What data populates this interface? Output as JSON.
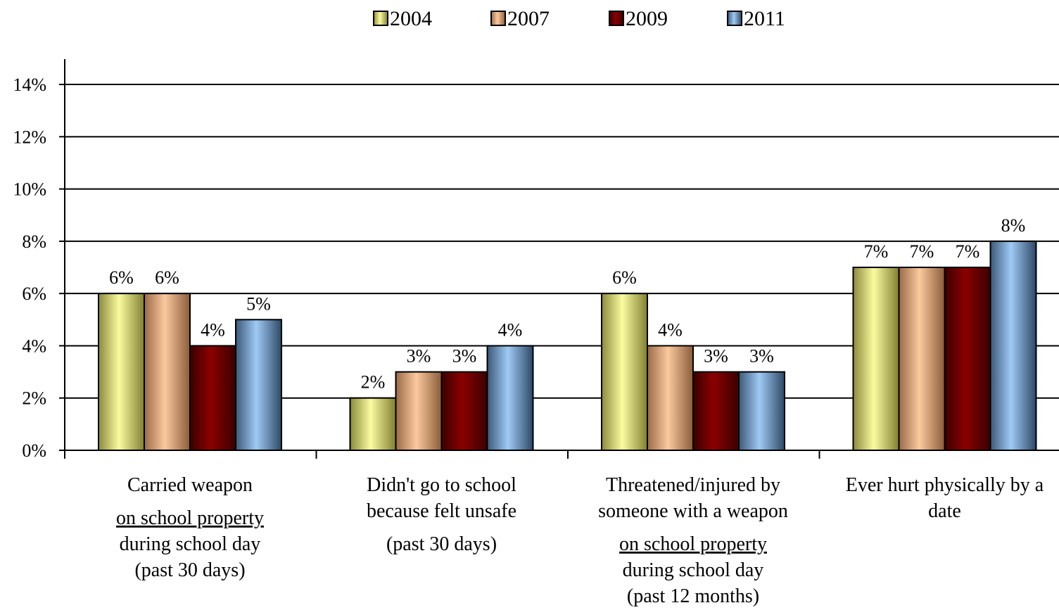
{
  "chart_data": {
    "type": "bar",
    "categories": [
      [
        "Carried weapon",
        "",
        "on school property",
        "during school day",
        "(past 30 days)"
      ],
      [
        "Didn't go to school",
        "because felt unsafe",
        "",
        "(past 30 days)"
      ],
      [
        "Threatened/injured by",
        "someone with a weapon",
        "",
        "on school property",
        "during school day",
        "(past 12 months)"
      ],
      [
        "Ever hurt physically by a",
        "date"
      ]
    ],
    "underlined_lines": [
      "on school property"
    ],
    "series": [
      {
        "name": "2004",
        "values": [
          6,
          2,
          6,
          7
        ]
      },
      {
        "name": "2007",
        "values": [
          6,
          3,
          4,
          7
        ]
      },
      {
        "name": "2009",
        "values": [
          4,
          3,
          3,
          7
        ]
      },
      {
        "name": "2011",
        "values": [
          5,
          4,
          3,
          8
        ]
      }
    ],
    "data_labels": [
      [
        "6%",
        "2%",
        "6%",
        "7%"
      ],
      [
        "6%",
        "3%",
        "4%",
        "7%"
      ],
      [
        "4%",
        "3%",
        "3%",
        "7%"
      ],
      [
        "5%",
        "4%",
        "3%",
        "8%"
      ]
    ],
    "y_ticks": [
      "0%",
      "2%",
      "4%",
      "6%",
      "8%",
      "10%",
      "12%",
      "14%"
    ],
    "ylim": [
      0,
      14
    ],
    "grid": true,
    "legend_position": "top-center",
    "colors": {
      "2004": [
        "#8a8a3c",
        "#fbfba0",
        "#7f7f32"
      ],
      "2007": [
        "#9a6a48",
        "#fbc99e",
        "#8b5c3a"
      ],
      "2009": [
        "#3a0000",
        "#8b0000",
        "#3a0000"
      ],
      "2011": [
        "#3c5878",
        "#9fcaf5",
        "#2e4866"
      ]
    }
  }
}
